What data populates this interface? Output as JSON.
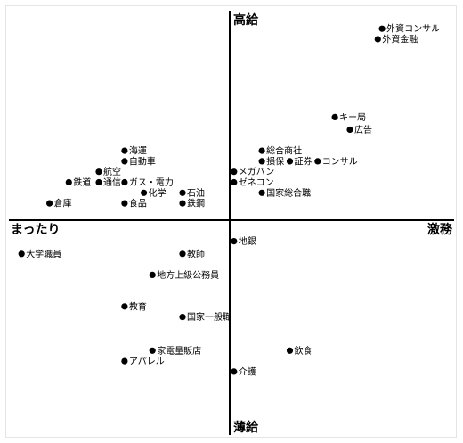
{
  "chart_data": {
    "type": "scatter",
    "title": "",
    "axes": {
      "top_label": "高給",
      "bottom_label": "薄給",
      "left_label": "まったり",
      "right_label": "激務"
    },
    "xlim": [
      -10,
      10
    ],
    "ylim": [
      -10,
      10
    ],
    "grid": false,
    "points": [
      {
        "label": "外資コンサル",
        "x": 7.1,
        "y": 9.1
      },
      {
        "label": "外資金融",
        "x": 6.9,
        "y": 8.6
      },
      {
        "label": "キー局",
        "x": 4.9,
        "y": 4.9
      },
      {
        "label": "広告",
        "x": 5.6,
        "y": 4.3
      },
      {
        "label": "総合商社",
        "x": 1.5,
        "y": 3.3
      },
      {
        "label": "損保",
        "x": 1.5,
        "y": 2.8
      },
      {
        "label": "証券",
        "x": 2.8,
        "y": 2.8
      },
      {
        "label": "コンサル",
        "x": 4.1,
        "y": 2.8
      },
      {
        "label": "メガバン",
        "x": 0.2,
        "y": 2.3
      },
      {
        "label": "ゼネコン",
        "x": 0.2,
        "y": 1.8
      },
      {
        "label": "国家総合職",
        "x": 1.5,
        "y": 1.3
      },
      {
        "label": "海運",
        "x": -4.9,
        "y": 3.3
      },
      {
        "label": "自動車",
        "x": -4.9,
        "y": 2.8
      },
      {
        "label": "航空",
        "x": -6.1,
        "y": 2.3
      },
      {
        "label": "鉄道",
        "x": -7.5,
        "y": 1.8
      },
      {
        "label": "通信",
        "x": -6.1,
        "y": 1.8
      },
      {
        "label": "ガス・電力",
        "x": -4.9,
        "y": 1.8
      },
      {
        "label": "化学",
        "x": -4.0,
        "y": 1.3
      },
      {
        "label": "石油",
        "x": -2.2,
        "y": 1.3
      },
      {
        "label": "倉庫",
        "x": -8.4,
        "y": 0.8
      },
      {
        "label": "食品",
        "x": -4.9,
        "y": 0.8
      },
      {
        "label": "鉄鋼",
        "x": -2.2,
        "y": 0.8
      },
      {
        "label": "地銀",
        "x": 0.2,
        "y": -1.0
      },
      {
        "label": "大学職員",
        "x": -9.7,
        "y": -1.6
      },
      {
        "label": "教師",
        "x": -2.2,
        "y": -1.6
      },
      {
        "label": "地方上級公務員",
        "x": -3.6,
        "y": -2.6
      },
      {
        "label": "教育",
        "x": -4.9,
        "y": -4.1
      },
      {
        "label": "国家一般職",
        "x": -2.2,
        "y": -4.6
      },
      {
        "label": "飲食",
        "x": 2.8,
        "y": -6.2
      },
      {
        "label": "家電量販店",
        "x": -3.6,
        "y": -6.2
      },
      {
        "label": "アパレル",
        "x": -4.9,
        "y": -6.7
      },
      {
        "label": "介護",
        "x": 0.2,
        "y": -7.2
      }
    ]
  }
}
